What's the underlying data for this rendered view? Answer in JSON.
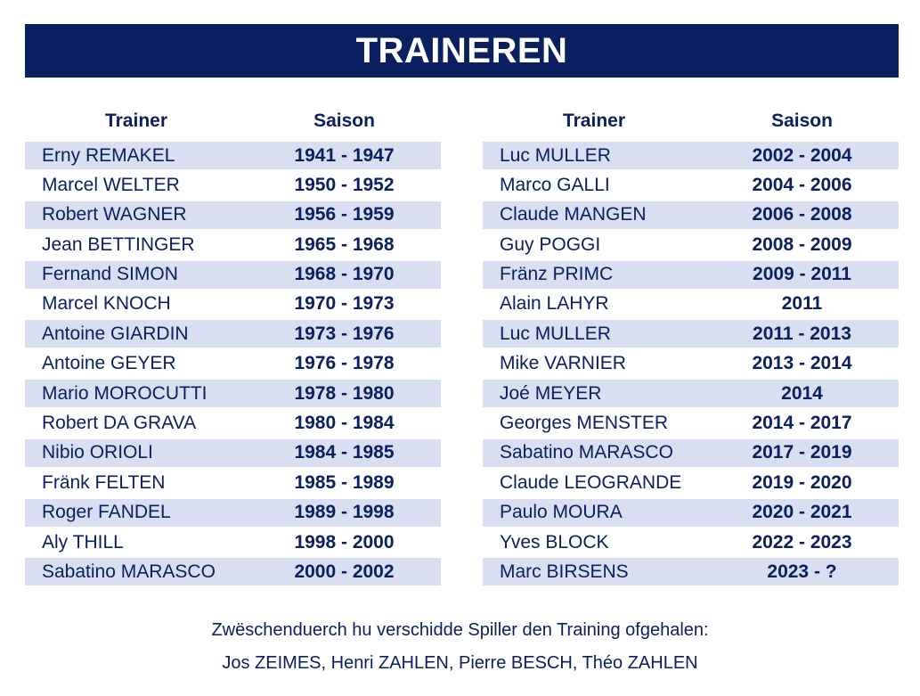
{
  "title": "TRAINEREN",
  "headers": {
    "trainer": "Trainer",
    "season": "Saison"
  },
  "left": [
    {
      "name": "Erny REMAKEL",
      "season": "1941 - 1947"
    },
    {
      "name": "Marcel WELTER",
      "season": "1950 - 1952"
    },
    {
      "name": "Robert WAGNER",
      "season": "1956 - 1959"
    },
    {
      "name": "Jean BETTINGER",
      "season": "1965 - 1968"
    },
    {
      "name": "Fernand SIMON",
      "season": "1968 - 1970"
    },
    {
      "name": "Marcel KNOCH",
      "season": "1970 - 1973"
    },
    {
      "name": "Antoine GIARDIN",
      "season": "1973 - 1976"
    },
    {
      "name": "Antoine GEYER",
      "season": "1976 - 1978"
    },
    {
      "name": "Mario MOROCUTTI",
      "season": "1978 - 1980"
    },
    {
      "name": "Robert DA GRAVA",
      "season": "1980 - 1984"
    },
    {
      "name": "Nibio ORIOLI",
      "season": "1984 - 1985"
    },
    {
      "name": "Fränk FELTEN",
      "season": "1985 - 1989"
    },
    {
      "name": "Roger FANDEL",
      "season": "1989 - 1998"
    },
    {
      "name": "Aly THILL",
      "season": "1998 - 2000"
    },
    {
      "name": "Sabatino MARASCO",
      "season": "2000 - 2002"
    }
  ],
  "right": [
    {
      "name": "Luc MULLER",
      "season": "2002 - 2004"
    },
    {
      "name": "Marco GALLI",
      "season": "2004 - 2006"
    },
    {
      "name": "Claude MANGEN",
      "season": "2006 - 2008"
    },
    {
      "name": "Guy POGGI",
      "season": "2008 - 2009"
    },
    {
      "name": "Fränz PRIMC",
      "season": "2009 - 2011"
    },
    {
      "name": "Alain LAHYR",
      "season": "2011"
    },
    {
      "name": "Luc MULLER",
      "season": "2011 - 2013"
    },
    {
      "name": "Mike VARNIER",
      "season": "2013 - 2014"
    },
    {
      "name": "Joé MEYER",
      "season": "2014"
    },
    {
      "name": "Georges MENSTER",
      "season": "2014 - 2017"
    },
    {
      "name": "Sabatino MARASCO",
      "season": "2017 - 2019"
    },
    {
      "name": "Claude LEOGRANDE",
      "season": "2019 - 2020"
    },
    {
      "name": "Paulo MOURA",
      "season": "2020 - 2021"
    },
    {
      "name": "Yves BLOCK",
      "season": "2022 - 2023"
    },
    {
      "name": "Marc BIRSENS",
      "season": "2023 - ?"
    }
  ],
  "note": {
    "line1": "Zwëschenduerch hu verschidde Spiller den Training ofgehalen:",
    "line2": "Jos ZEIMES, Henri ZAHLEN, Pierre BESCH, Théo ZAHLEN"
  }
}
